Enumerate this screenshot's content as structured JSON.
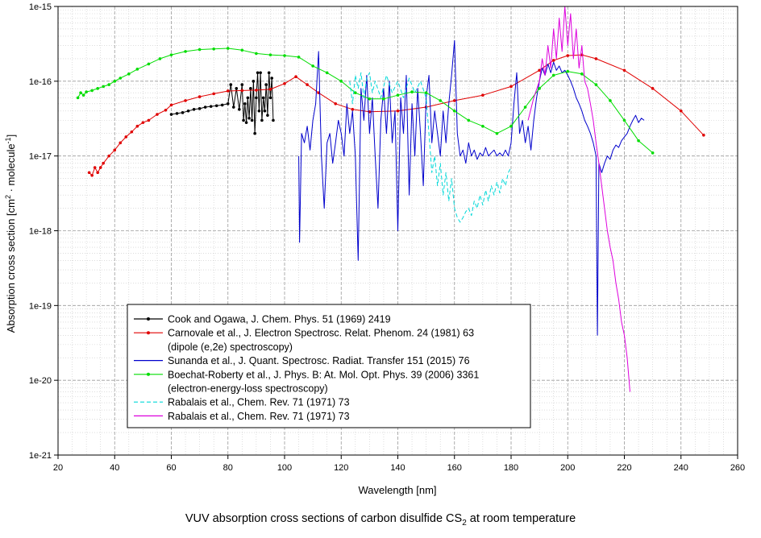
{
  "caption": {
    "main": "VUV absorption cross sections of carbon disulfide CS",
    "sub": "2",
    "tail": " at room temperature"
  },
  "chart_data": {
    "type": "line",
    "xlabel": "Wavelength [nm]",
    "ylabel": {
      "pre": "Absorption cross section [cm",
      "sup1": "2",
      "mid": " · molecule",
      "sup2": "-1",
      "post": "]"
    },
    "xlim": [
      20,
      260
    ],
    "ylim": [
      1e-21,
      1e-15
    ],
    "yscale": "log",
    "xticks": [
      20,
      40,
      60,
      80,
      100,
      120,
      140,
      160,
      180,
      200,
      220,
      240,
      260
    ],
    "yticks": [
      {
        "v": 1e-21,
        "label": "1e-21"
      },
      {
        "v": 1e-20,
        "label": "1e-20"
      },
      {
        "v": 1e-19,
        "label": "1e-19"
      },
      {
        "v": 1e-18,
        "label": "1e-18"
      },
      {
        "v": 1e-17,
        "label": "1e-17"
      },
      {
        "v": 1e-16,
        "label": "1e-16"
      },
      {
        "v": 1e-15,
        "label": "1e-15"
      }
    ],
    "grid": true,
    "legend_position": "lower-left",
    "series": [
      {
        "name": "Cook and Ogawa, J. Chem. Phys. 51 (1969) 2419",
        "color": "#000000",
        "style": "solid",
        "marker": "dot",
        "x": [
          60,
          62,
          64,
          66,
          68,
          70,
          72,
          74,
          76,
          78,
          80,
          81,
          82,
          83,
          84,
          85,
          85.5,
          86,
          86.5,
          87,
          87.5,
          88,
          88.5,
          89,
          89.5,
          90,
          90.5,
          91,
          91.5,
          92,
          92.5,
          93,
          93.5,
          94,
          94.5,
          95,
          95.5,
          96
        ],
        "y": [
          3.6e-17,
          3.7e-17,
          3.8e-17,
          4e-17,
          4.2e-17,
          4.3e-17,
          4.5e-17,
          4.6e-17,
          4.7e-17,
          4.8e-17,
          5e-17,
          9e-17,
          4.5e-17,
          8e-17,
          4.2e-17,
          9e-17,
          3e-17,
          5e-17,
          2.8e-17,
          6e-17,
          3.2e-17,
          8e-17,
          3e-17,
          1e-16,
          2e-17,
          6e-17,
          1.3e-16,
          4e-17,
          1.3e-16,
          3e-17,
          6e-17,
          4e-17,
          9e-17,
          3.5e-17,
          1.3e-16,
          6e-17,
          1.1e-16,
          3e-17
        ]
      },
      {
        "name": "Carnovale et al., J. Electron Spectrosc. Relat. Phenom. 24 (1981) 63",
        "name2": "(dipole (e,2e) spectroscopy)",
        "color": "#e00000",
        "style": "solid",
        "marker": "dot",
        "x": [
          31,
          32,
          33,
          34,
          35,
          36,
          38,
          40,
          42,
          44,
          46,
          48,
          50,
          52,
          55,
          58,
          60,
          65,
          70,
          75,
          80,
          85,
          90,
          95,
          100,
          104,
          108,
          112,
          118,
          124,
          130,
          140,
          150,
          160,
          170,
          180,
          190,
          195,
          200,
          205,
          210,
          220,
          230,
          240,
          248
        ],
        "y": [
          6e-18,
          5.5e-18,
          7e-18,
          6e-18,
          7e-18,
          8e-18,
          1e-17,
          1.2e-17,
          1.5e-17,
          1.8e-17,
          2.1e-17,
          2.5e-17,
          2.8e-17,
          3e-17,
          3.6e-17,
          4.1e-17,
          4.8e-17,
          5.5e-17,
          6.2e-17,
          6.8e-17,
          7.4e-17,
          7.5e-17,
          7.6e-17,
          7.8e-17,
          9.3e-17,
          1.15e-16,
          9e-17,
          7e-17,
          5e-17,
          4.2e-17,
          3.9e-17,
          4e-17,
          4.5e-17,
          5.5e-17,
          6.5e-17,
          8.5e-17,
          1.4e-16,
          1.9e-16,
          2.2e-16,
          2.25e-16,
          2e-16,
          1.4e-16,
          8e-17,
          4e-17,
          1.9e-17
        ]
      },
      {
        "name": "Sunanda et al., J. Quant. Spectrosc. Radiat. Transfer 151 (2015) 76",
        "color": "#0000cc",
        "style": "solid",
        "marker": "none",
        "x": [
          105,
          105.3,
          106,
          107,
          108,
          109,
          110,
          111,
          112,
          113,
          114,
          115,
          116,
          117,
          118,
          119,
          120,
          121,
          122,
          123,
          124,
          125,
          126,
          127,
          128,
          129,
          130,
          131,
          132,
          133,
          134,
          135,
          136,
          137,
          138,
          139,
          140,
          141,
          142,
          143,
          144,
          145,
          146,
          147,
          148,
          149,
          150,
          151,
          152,
          153,
          154,
          155,
          156,
          157,
          158,
          159,
          160,
          161,
          162,
          163,
          164,
          165,
          166,
          167,
          168,
          169,
          170,
          171,
          172,
          173,
          174,
          175,
          176,
          177,
          178,
          179,
          180,
          181,
          182,
          183,
          184,
          185,
          186,
          187,
          188,
          189,
          190,
          191,
          192,
          193,
          194,
          195,
          196,
          197,
          198,
          199,
          200,
          201,
          202,
          203,
          204,
          205,
          206,
          207,
          208,
          209,
          210,
          210.5,
          211,
          212,
          213,
          214,
          215,
          216,
          217,
          218,
          219,
          220,
          221,
          222,
          223,
          224,
          225,
          226,
          227
        ],
        "y": [
          1e-17,
          7e-19,
          2e-17,
          1.5e-17,
          2.5e-17,
          1.2e-17,
          3e-17,
          5e-17,
          2.5e-16,
          1e-17,
          2e-18,
          1.5e-17,
          2e-17,
          8e-18,
          1.5e-17,
          3e-17,
          2e-17,
          1e-17,
          5e-17,
          2e-17,
          4e-17,
          1e-17,
          4e-19,
          8e-17,
          3e-17,
          1.2e-16,
          2e-17,
          6e-17,
          1e-17,
          2e-18,
          3e-17,
          8e-17,
          2e-17,
          1e-16,
          1.5e-17,
          4e-17,
          1e-18,
          6e-17,
          2e-17,
          1.2e-16,
          3e-18,
          5e-17,
          1e-17,
          8e-17,
          2e-17,
          4e-18,
          6e-17,
          1.2e-16,
          1.5e-17,
          4e-17,
          2e-17,
          1e-17,
          4e-17,
          1.5e-17,
          5e-17,
          1.2e-16,
          3.5e-16,
          2e-17,
          1e-17,
          1.2e-17,
          8e-18,
          1.5e-17,
          1e-17,
          1.2e-17,
          9e-18,
          1.1e-17,
          1e-17,
          1.3e-17,
          1e-17,
          1.1e-17,
          1.2e-17,
          1e-17,
          1.1e-17,
          1e-17,
          1.2e-17,
          1e-17,
          1.5e-17,
          5e-17,
          1.3e-16,
          2e-17,
          3e-17,
          1.5e-17,
          2.5e-17,
          1.2e-17,
          3e-17,
          6e-17,
          1e-16,
          1.5e-16,
          1.2e-16,
          1.7e-16,
          1.3e-16,
          1.8e-16,
          1.4e-16,
          1.6e-16,
          1.3e-16,
          1.4e-16,
          1.2e-16,
          1e-16,
          8e-17,
          6e-17,
          5e-17,
          4e-17,
          3e-17,
          2.5e-17,
          2e-17,
          1.5e-17,
          1e-17,
          4e-20,
          8e-18,
          6e-18,
          8e-18,
          1e-17,
          9e-18,
          1.2e-17,
          1.4e-17,
          1.3e-17,
          1.6e-17,
          1.8e-17,
          2e-17,
          2.5e-17,
          3e-17,
          3.5e-17,
          2.8e-17,
          3.2e-17,
          3e-17
        ]
      },
      {
        "name": "Boechat-Roberty et al., J. Phys. B: At. Mol. Opt. Phys. 39 (2006) 3361",
        "name2": "(electron-energy-loss spectroscopy)",
        "color": "#00dd00",
        "style": "solid",
        "marker": "dot",
        "x": [
          27,
          28,
          29,
          30,
          32,
          34,
          36,
          38,
          40,
          42,
          45,
          48,
          52,
          56,
          60,
          65,
          70,
          75,
          80,
          85,
          90,
          95,
          100,
          105,
          110,
          115,
          120,
          125,
          130,
          135,
          140,
          145,
          150,
          155,
          160,
          165,
          170,
          175,
          180,
          185,
          190,
          195,
          200,
          205,
          210,
          215,
          220,
          225,
          230
        ],
        "y": [
          6e-17,
          7e-17,
          6.5e-17,
          7.2e-17,
          7.5e-17,
          8e-17,
          8.5e-17,
          9e-17,
          1e-16,
          1.1e-16,
          1.25e-16,
          1.45e-16,
          1.7e-16,
          2e-16,
          2.25e-16,
          2.5e-16,
          2.65e-16,
          2.7e-16,
          2.75e-16,
          2.6e-16,
          2.35e-16,
          2.25e-16,
          2.2e-16,
          2.1e-16,
          1.6e-16,
          1.3e-16,
          1e-16,
          7e-17,
          5.8e-17,
          5.8e-17,
          6.5e-17,
          7.2e-17,
          7e-17,
          5.5e-17,
          4e-17,
          3e-17,
          2.5e-17,
          2e-17,
          2.5e-17,
          4.5e-17,
          8e-17,
          1.2e-16,
          1.35e-16,
          1.25e-16,
          9e-17,
          5.5e-17,
          3e-17,
          1.6e-17,
          1.1e-17
        ]
      },
      {
        "name": "Rabalais et al., Chem. Rev. 71 (1971) 73",
        "color": "#00d8d8",
        "style": "dashed",
        "marker": "none",
        "x": [
          123,
          124,
          125,
          126,
          127,
          128,
          129,
          130,
          131,
          132,
          134,
          136,
          138,
          140,
          142,
          144,
          146,
          148,
          150,
          151,
          152,
          153,
          154,
          155,
          156,
          157,
          158,
          159,
          160,
          161,
          162,
          163,
          164,
          165,
          166,
          167,
          168,
          169,
          170,
          171,
          172,
          173,
          174,
          175,
          176,
          177,
          178,
          179,
          180
        ],
        "y": [
          1e-16,
          5e-17,
          1.2e-16,
          8e-17,
          1.3e-16,
          6e-17,
          1.1e-16,
          1.3e-16,
          7e-17,
          1e-16,
          6e-17,
          1.2e-16,
          7e-17,
          1e-16,
          6e-17,
          1.1e-16,
          7e-17,
          1e-16,
          6e-17,
          2e-17,
          6e-18,
          1e-17,
          4e-18,
          8e-18,
          3e-18,
          6e-18,
          2.5e-18,
          5e-18,
          2e-18,
          1.5e-18,
          1.3e-18,
          1.5e-18,
          1.8e-18,
          2e-18,
          1.6e-18,
          2.5e-18,
          2e-18,
          3e-18,
          2.2e-18,
          3.5e-18,
          2.5e-18,
          4e-18,
          3e-18,
          4.5e-18,
          3.2e-18,
          5e-18,
          4e-18,
          6e-18,
          7e-18
        ]
      },
      {
        "name": "Rabalais et al., Chem. Rev. 71 (1971) 73",
        "color": "#dd00dd",
        "style": "solid",
        "marker": "none",
        "x": [
          186,
          188,
          190,
          191,
          192,
          193,
          194,
          195,
          196,
          197,
          198,
          199,
          200,
          201,
          202,
          203,
          204,
          205,
          206,
          207,
          208,
          209,
          210,
          211,
          212,
          213,
          214,
          215,
          216,
          217,
          218,
          219,
          220,
          221,
          222
        ],
        "y": [
          3e-17,
          6e-17,
          1e-16,
          2e-16,
          1.2e-16,
          3e-16,
          1.5e-16,
          5e-16,
          2e-16,
          7e-16,
          2.5e-16,
          1e-15,
          3e-16,
          8e-16,
          2e-16,
          5e-16,
          1.5e-16,
          3e-16,
          1e-16,
          8e-17,
          5e-17,
          3e-17,
          1.5e-17,
          8e-18,
          4e-18,
          2e-18,
          1e-18,
          6e-19,
          4e-19,
          2e-19,
          1.2e-19,
          6e-20,
          4e-20,
          2e-20,
          7e-21
        ]
      }
    ]
  }
}
